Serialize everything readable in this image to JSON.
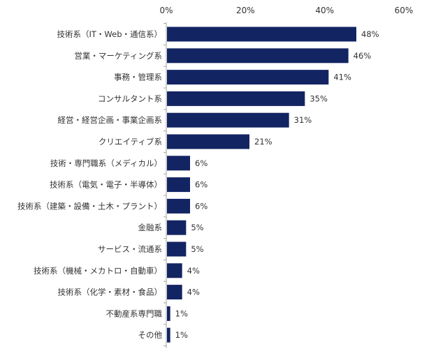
{
  "chart_data": {
    "type": "bar",
    "orientation": "horizontal",
    "categories": [
      "技術系（IT・Web・通信系）",
      "営業・マーケティング系",
      "事務・管理系",
      "コンサルタント系",
      "経営・経営企画・事業企画系",
      "クリエイティブ系",
      "技術・専門職系（メディカル）",
      "技術系（電気・電子・半導体）",
      "技術系（建築・設備・土木・プラント）",
      "金融系",
      "サービス・流通系",
      "技術系（機械・メカトロ・自動車）",
      "技術系（化学・素材・食品）",
      "不動産系専門職",
      "その他"
    ],
    "values": [
      48,
      46,
      41,
      35,
      31,
      21,
      6,
      6,
      6,
      5,
      5,
      4,
      4,
      1,
      1
    ],
    "value_labels": [
      "48%",
      "46%",
      "41%",
      "35%",
      "31%",
      "21%",
      "6%",
      "6%",
      "6%",
      "5%",
      "5%",
      "4%",
      "4%",
      "1%",
      "1%"
    ],
    "xlim": [
      0,
      60
    ],
    "ticks": [
      0,
      20,
      40,
      60
    ],
    "tick_labels": [
      "0%",
      "20%",
      "40%",
      "60%"
    ],
    "axis_position": "top",
    "grid": false,
    "bar_color": "#132463",
    "axis_color": "#a6a6a6"
  }
}
